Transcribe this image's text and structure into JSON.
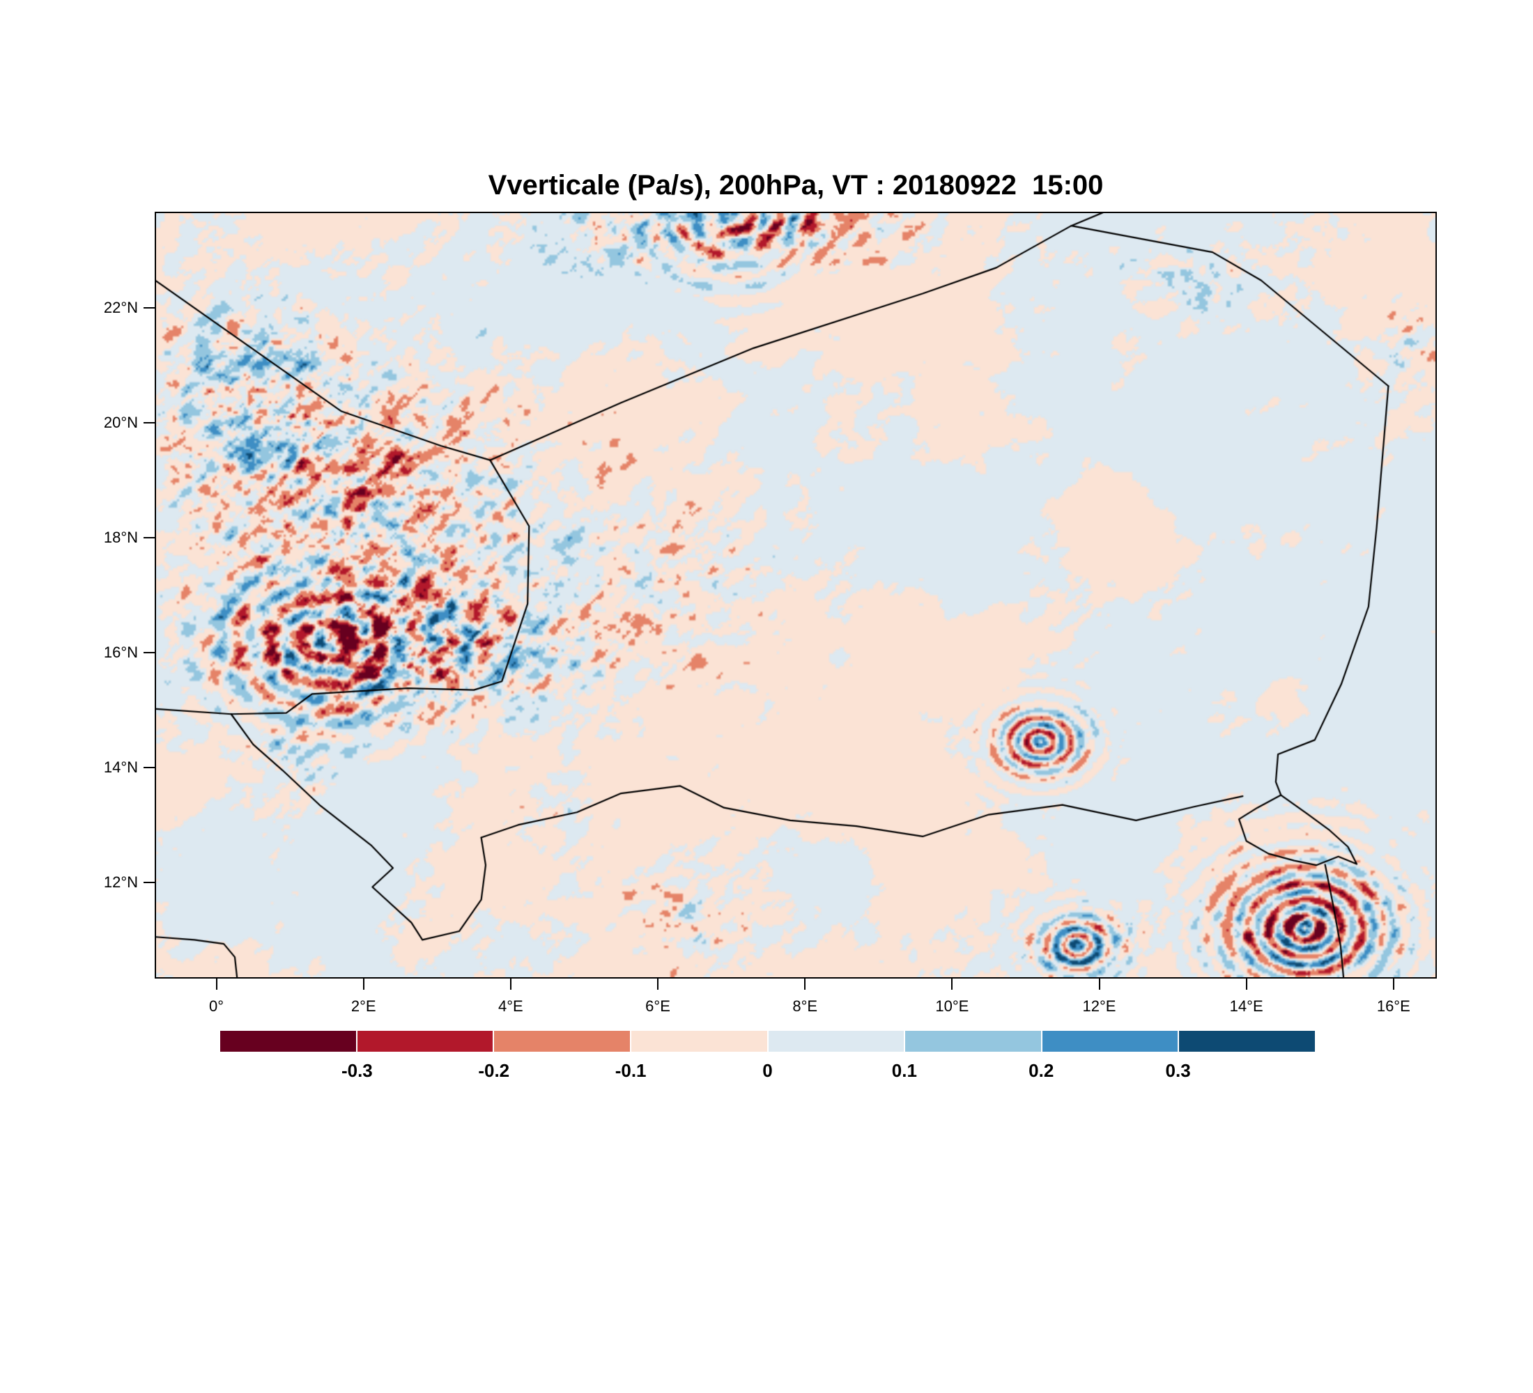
{
  "chart": {
    "title": "Vverticale (Pa/s), 200hPa, VT : 20180922  15:00"
  },
  "chart_data": {
    "type": "heatmap",
    "title": "Vverticale (Pa/s), 200hPa, VT : 20180922  15:00",
    "variable": "Vverticale",
    "units": "Pa/s",
    "pressure_level": "200hPa",
    "valid_time": "20180922 15:00",
    "xlabel": "",
    "ylabel": "",
    "x_ticks": [
      {
        "label": "0°",
        "lon": 0
      },
      {
        "label": "2°E",
        "lon": 2
      },
      {
        "label": "4°E",
        "lon": 4
      },
      {
        "label": "6°E",
        "lon": 6
      },
      {
        "label": "8°E",
        "lon": 8
      },
      {
        "label": "10°E",
        "lon": 10
      },
      {
        "label": "12°E",
        "lon": 12
      },
      {
        "label": "14°E",
        "lon": 14
      },
      {
        "label": "16°E",
        "lon": 16
      }
    ],
    "y_ticks": [
      {
        "label": "22°N",
        "lat": 22
      },
      {
        "label": "20°N",
        "lat": 20
      },
      {
        "label": "18°N",
        "lat": 18
      },
      {
        "label": "16°N",
        "lat": 16
      },
      {
        "label": "14°N",
        "lat": 14
      },
      {
        "label": "12°N",
        "lat": 12
      }
    ],
    "lon_range": [
      -0.82,
      16.57
    ],
    "lat_range": [
      10.35,
      23.65
    ],
    "colorbar": {
      "labels": [
        "-0.3",
        "-0.2",
        "-0.1",
        "0",
        "0.1",
        "0.2",
        "0.3"
      ],
      "levels": [
        -0.3,
        -0.2,
        -0.1,
        0,
        0.1,
        0.2,
        0.3
      ],
      "colors": [
        "#67001f",
        "#b2182b",
        "#e58368",
        "#fbe3d5",
        "#dde9f1",
        "#94c6df",
        "#3e8ec4",
        "#0d4a73"
      ]
    },
    "borders": [
      [
        [
          -0.82,
          22.47
        ],
        [
          1.7,
          20.2
        ],
        [
          3.05,
          19.6
        ],
        [
          3.72,
          19.35
        ]
      ],
      [
        [
          3.72,
          19.35
        ],
        [
          5.5,
          20.35
        ],
        [
          7.3,
          21.3
        ],
        [
          9.6,
          22.25
        ],
        [
          10.6,
          22.7
        ],
        [
          11.62,
          23.43
        ],
        [
          12.05,
          23.66
        ]
      ],
      [
        [
          11.62,
          23.43
        ],
        [
          13.54,
          22.97
        ],
        [
          14.2,
          22.48
        ],
        [
          15.93,
          20.64
        ]
      ],
      [
        [
          15.93,
          20.64
        ],
        [
          15.77,
          18.17
        ],
        [
          15.66,
          16.8
        ],
        [
          15.29,
          15.45
        ],
        [
          14.93,
          14.48
        ],
        [
          14.43,
          14.23
        ],
        [
          14.4,
          13.75
        ],
        [
          14.47,
          13.52
        ]
      ],
      [
        [
          14.47,
          13.52
        ],
        [
          14.15,
          13.3
        ],
        [
          13.9,
          13.1
        ],
        [
          14.0,
          12.72
        ],
        [
          14.3,
          12.5
        ],
        [
          14.65,
          12.38
        ],
        [
          14.95,
          12.3
        ],
        [
          15.25,
          12.45
        ],
        [
          15.5,
          12.32
        ],
        [
          15.38,
          12.62
        ],
        [
          15.12,
          12.92
        ],
        [
          14.82,
          13.2
        ],
        [
          14.47,
          13.52
        ]
      ],
      [
        [
          15.07,
          12.31
        ],
        [
          15.18,
          11.6
        ],
        [
          15.28,
          10.9
        ],
        [
          15.32,
          10.35
        ]
      ],
      [
        [
          3.72,
          19.35
        ],
        [
          4.25,
          18.2
        ],
        [
          4.23,
          16.85
        ],
        [
          3.88,
          15.5
        ],
        [
          3.5,
          15.35
        ],
        [
          2.6,
          15.38
        ],
        [
          1.3,
          15.28
        ],
        [
          0.95,
          14.95
        ],
        [
          0.2,
          14.93
        ],
        [
          -0.82,
          15.02
        ]
      ],
      [
        [
          0.2,
          14.93
        ],
        [
          0.5,
          14.4
        ],
        [
          0.9,
          13.95
        ],
        [
          1.4,
          13.35
        ],
        [
          2.1,
          12.65
        ],
        [
          2.4,
          12.25
        ],
        [
          2.12,
          11.92
        ],
        [
          2.65,
          11.3
        ],
        [
          2.8,
          11.0
        ],
        [
          3.3,
          11.15
        ],
        [
          3.6,
          11.7
        ],
        [
          3.66,
          12.3
        ],
        [
          3.6,
          12.78
        ]
      ],
      [
        [
          3.6,
          12.78
        ],
        [
          4.1,
          13.0
        ],
        [
          4.9,
          13.22
        ],
        [
          5.5,
          13.55
        ],
        [
          6.3,
          13.68
        ],
        [
          6.9,
          13.3
        ],
        [
          7.8,
          13.08
        ],
        [
          8.7,
          12.98
        ],
        [
          9.6,
          12.8
        ],
        [
          10.5,
          13.18
        ],
        [
          11.5,
          13.35
        ],
        [
          12.5,
          13.08
        ],
        [
          13.3,
          13.32
        ],
        [
          13.95,
          13.5
        ]
      ],
      [
        [
          -0.82,
          11.05
        ],
        [
          -0.3,
          11.0
        ],
        [
          0.1,
          10.93
        ],
        [
          0.25,
          10.7
        ],
        [
          0.28,
          10.35
        ]
      ]
    ],
    "activity_centers": [
      [
        2.0,
        18.2,
        2.4,
        2.6,
        0.5
      ],
      [
        2.6,
        15.9,
        2.3,
        1.0,
        0.55
      ],
      [
        0.3,
        20.6,
        1.5,
        1.5,
        0.42
      ],
      [
        6.8,
        23.4,
        2.4,
        0.7,
        0.5
      ],
      [
        6.4,
        17.4,
        1.8,
        1.7,
        0.2
      ],
      [
        11.2,
        14.4,
        1.0,
        0.5,
        0.3
      ],
      [
        11.7,
        10.9,
        0.9,
        0.6,
        0.35
      ],
      [
        14.8,
        11.3,
        1.5,
        1.1,
        0.42
      ],
      [
        13.3,
        22.5,
        1.3,
        0.7,
        0.22
      ],
      [
        6.6,
        11.5,
        1.2,
        0.9,
        0.28
      ],
      [
        16.3,
        21.3,
        0.6,
        0.7,
        0.28
      ],
      [
        1.0,
        14.1,
        0.6,
        0.5,
        0.32
      ],
      [
        4.6,
        13.2,
        0.9,
        0.5,
        0.2
      ]
    ],
    "wave_trains": [
      [
        14.8,
        11.2,
        22,
        1.2,
        0.3
      ],
      [
        11.2,
        14.45,
        26,
        0.65,
        0.28
      ],
      [
        11.7,
        10.9,
        26,
        0.6,
        0.25
      ],
      [
        7.0,
        23.6,
        16,
        1.2,
        0.2
      ],
      [
        1.5,
        16.2,
        14,
        1.5,
        0.25
      ]
    ]
  }
}
